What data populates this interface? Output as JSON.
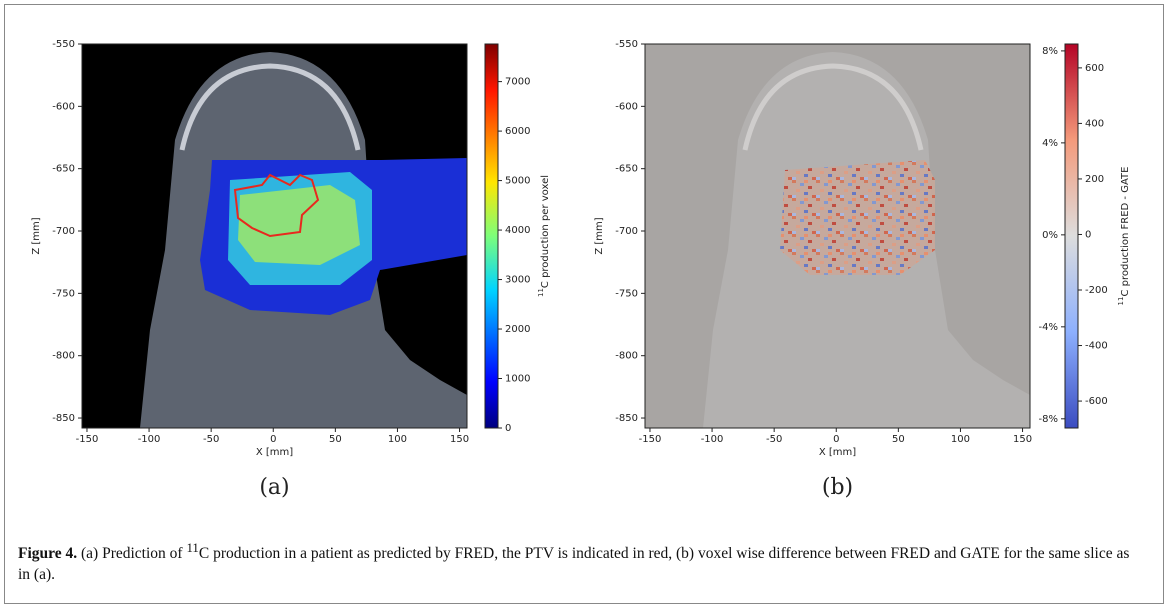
{
  "figure": {
    "panels": [
      {
        "label": "(a)",
        "x_label": "X [mm]",
        "y_label": "Z [mm]",
        "xlim": [
          -154,
          156
        ],
        "xticks": [
          -150,
          -100,
          -50,
          0,
          50,
          100,
          150
        ],
        "ylim": [
          -550,
          -858
        ],
        "yticks": [
          -550,
          -600,
          -650,
          -700,
          -750,
          -800,
          -850
        ],
        "colorbar": {
          "label_sup": "11",
          "label": "C production per voxel",
          "colormap": "jet",
          "lim": [
            0,
            7760
          ],
          "ticks": [
            0,
            1000,
            2000,
            3000,
            4000,
            5000,
            6000,
            7000
          ]
        }
      },
      {
        "label": "(b)",
        "x_label": "X [mm]",
        "y_label": "Z [mm]",
        "xlim": [
          -154,
          156
        ],
        "xticks": [
          -150,
          -100,
          -50,
          0,
          50,
          100,
          150
        ],
        "ylim": [
          -550,
          -858
        ],
        "yticks": [
          -550,
          -600,
          -650,
          -700,
          -750,
          -800,
          -850
        ],
        "colorbar": {
          "label_sup": "11",
          "label": "C production FRED - GATE",
          "colormap": "coolwarm",
          "lim": [
            -697,
            686
          ],
          "ticks": [
            -600,
            -400,
            -200,
            0,
            200,
            400,
            600
          ],
          "left_lim": [
            -8.4,
            8.3
          ],
          "left_ticks": [
            {
              "value": -8,
              "label": "-8%"
            },
            {
              "value": -4,
              "label": "-4%"
            },
            {
              "value": 0,
              "label": "0%"
            },
            {
              "value": 4,
              "label": "4%"
            },
            {
              "value": 8,
              "label": "8%"
            }
          ]
        }
      }
    ],
    "caption": {
      "label": "Figure 4.",
      "text_before": "(a) Prediction of ",
      "sup": "11",
      "text_after": "C production in a patient as predicted by FRED, the PTV is indicated in red, (b) voxel wise difference between FRED and GATE for the same slice as in (a)."
    }
  }
}
